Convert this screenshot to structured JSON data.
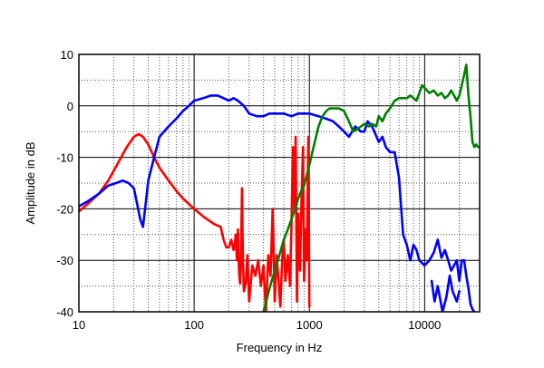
{
  "chart_data": {
    "type": "line",
    "xlabel": "Frequency in Hz",
    "ylabel": "Amplitude in dB",
    "xscale": "log",
    "xlim": [
      10,
      30000
    ],
    "ylim": [
      -40,
      10
    ],
    "xticks": [
      10,
      100,
      1000,
      10000
    ],
    "xtick_labels": [
      "10",
      "100",
      "1000",
      "10000"
    ],
    "yticks": [
      10,
      0,
      -10,
      -20,
      -30,
      -40
    ],
    "ytick_labels": [
      "10",
      "0",
      "-10",
      "-20",
      "-30",
      "-40"
    ],
    "grid": "major solid, minor dotted",
    "series": [
      {
        "color": "#ff0000",
        "x": [
          10,
          12,
          15,
          18,
          22,
          26,
          30,
          33,
          36,
          40,
          45,
          50,
          60,
          70,
          80,
          100,
          120,
          150,
          170,
          180,
          190,
          200,
          210,
          220,
          225,
          230,
          235,
          240,
          245,
          250,
          255,
          260,
          265,
          270,
          280,
          290,
          300,
          320,
          340,
          360,
          380,
          400,
          420,
          440,
          460,
          480,
          500,
          520,
          540,
          560,
          580,
          600,
          620,
          650,
          680,
          700,
          720,
          740,
          760,
          780,
          800,
          830,
          850,
          880,
          900,
          930,
          950,
          980,
          1000
        ],
        "y": [
          -20.5,
          -19,
          -17,
          -14.5,
          -11,
          -8,
          -6,
          -5.5,
          -6,
          -7.5,
          -10,
          -12,
          -14.5,
          -16.5,
          -18,
          -20,
          -21.5,
          -23,
          -23.5,
          -26,
          -27.5,
          -27.5,
          -26,
          -28,
          -27,
          -25,
          -30,
          -24,
          -32,
          -34.5,
          -30,
          -16,
          -29.5,
          -36,
          -34.5,
          -29,
          -38,
          -31,
          -33,
          -30,
          -35,
          -31,
          -40,
          -29,
          -33,
          -20,
          -38,
          -29,
          -34,
          -39,
          -30,
          -26,
          -34,
          -29,
          -35,
          -23,
          -8,
          -20,
          -6,
          -38,
          -21,
          -32,
          -20,
          -8,
          -34,
          -24,
          -30,
          -6,
          -39
        ]
      },
      {
        "color": "#0000ff",
        "x": [
          10,
          12,
          15,
          18,
          21,
          24,
          27,
          30,
          32,
          34,
          36,
          38,
          40,
          45,
          50,
          60,
          70,
          80,
          90,
          100,
          120,
          140,
          160,
          180,
          200,
          220,
          240,
          270,
          300,
          350,
          400,
          450,
          500,
          600,
          700,
          800,
          900,
          1000,
          1200,
          1400,
          1600,
          1800,
          2000,
          2200,
          2500,
          2800,
          3000,
          3200,
          3500,
          4000,
          4300,
          4600,
          5000,
          5500,
          6000,
          6500,
          7000,
          7500,
          8000,
          8500,
          9000,
          10000,
          11000,
          12000,
          13000,
          14000,
          15000,
          16000,
          17000,
          18000,
          19000,
          20000,
          21000,
          22000,
          23000,
          24000,
          25000,
          26000,
          27000
        ],
        "y": [
          -19.5,
          -18.5,
          -17,
          -15.5,
          -15,
          -14.5,
          -15,
          -16,
          -19,
          -22,
          -23.5,
          -19,
          -14.5,
          -10,
          -6,
          -4,
          -2.5,
          -1,
          0,
          1,
          1.5,
          2,
          2,
          1.5,
          1,
          1.5,
          1,
          0,
          -1.5,
          -2,
          -2,
          -1.5,
          -1.5,
          -1.5,
          -2,
          -1.5,
          -1.5,
          -1.5,
          -2,
          -2.5,
          -3,
          -4,
          -5,
          -6,
          -4,
          -5,
          -5,
          -3,
          -4,
          -7,
          -6,
          -8,
          -9,
          -9,
          -14,
          -25,
          -27,
          -30,
          -27,
          -28,
          -30,
          -31,
          -30,
          -28.5,
          -26,
          -29.5,
          -28,
          -30,
          -32,
          -31,
          -30,
          -34,
          -30,
          -30,
          -33,
          -35.5,
          -38.5,
          -39.5,
          -40
        ],
        "extra_x": [
          11500,
          12200,
          13000,
          14300,
          15500,
          16500,
          17500,
          19000,
          20000
        ],
        "extra_y": [
          -34,
          -38,
          -35,
          -40,
          -37,
          -33,
          -36,
          -38,
          -36
        ]
      },
      {
        "color": "#008000",
        "x": [
          400,
          450,
          500,
          550,
          600,
          650,
          700,
          750,
          800,
          850,
          900,
          1000,
          1100,
          1200,
          1300,
          1400,
          1500,
          1600,
          1700,
          1800,
          2000,
          2200,
          2400,
          2600,
          2800,
          3000,
          3300,
          3500,
          3800,
          4000,
          4300,
          4600,
          5000,
          5500,
          6000,
          6500,
          7000,
          7500,
          8000,
          8500,
          9000,
          9500,
          10000,
          11000,
          12000,
          13000,
          14000,
          15000,
          16000,
          17000,
          18000,
          19000,
          20000,
          21000,
          22000,
          23000,
          24000,
          25000,
          26000,
          27000,
          28000,
          29000
        ],
        "y": [
          -40,
          -35.5,
          -32,
          -29,
          -26,
          -24,
          -22,
          -20,
          -18,
          -16.5,
          -15.5,
          -11.5,
          -7.5,
          -4,
          -2,
          -1,
          -0.5,
          -0.5,
          -0.5,
          -0.5,
          -1,
          -3,
          -5,
          -4.5,
          -4,
          -3.5,
          -4,
          -3.5,
          -4,
          -2,
          -3,
          -1.5,
          -0.5,
          1,
          1.5,
          1.5,
          1.5,
          2,
          1.5,
          1,
          2.5,
          4,
          3.5,
          2.5,
          3,
          2,
          2.5,
          1.5,
          2,
          3,
          2,
          1,
          2,
          4,
          6,
          8,
          2,
          -2,
          -7,
          -8,
          -7.5,
          -8
        ]
      }
    ]
  }
}
